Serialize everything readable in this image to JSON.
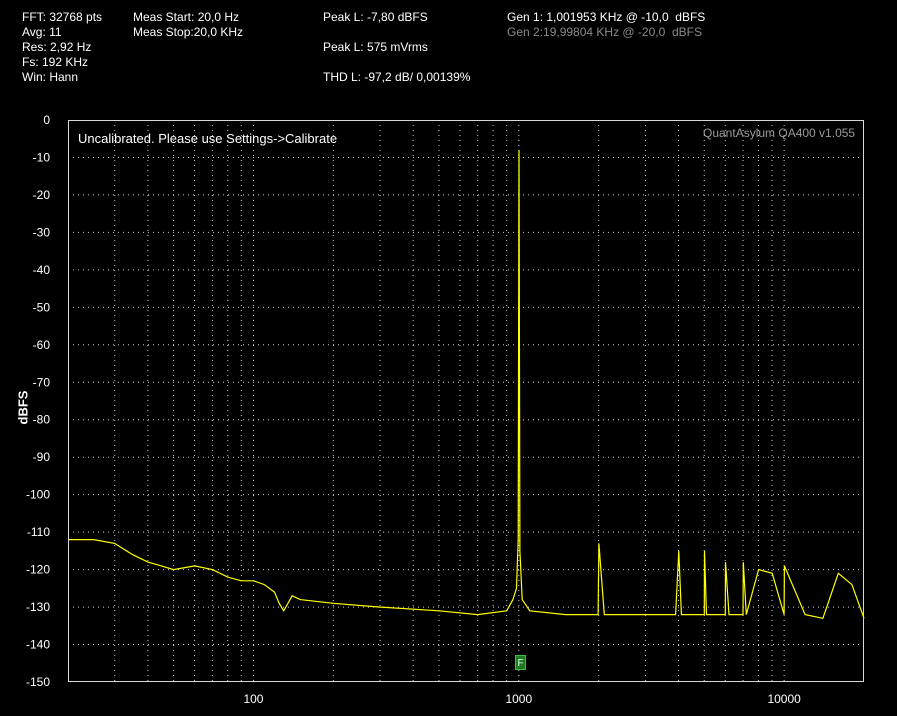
{
  "header": {
    "fft": "FFT: 32768 pts",
    "avg": "Avg: 11",
    "res": "Res: 2,92 Hz",
    "fs": "Fs: 192 KHz",
    "win": "Win: Hann",
    "meas_start": "Meas Start: 20,0 Hz",
    "meas_stop": "Meas Stop:20,0 KHz",
    "peak_dbfs": "Peak L: -7,80 dBFS",
    "peak_mvrms": "Peak L: 575 mVrms",
    "thd": "THD L: -97,2 dB/ 0,00139%",
    "gen1": "Gen 1: 1,001953 KHz @ -10,0  dBFS",
    "gen2": "Gen 2:19,99804 KHz @ -20,0  dBFS"
  },
  "plot": {
    "note": "Uncalibrated. Please use Settings->Calibrate",
    "brand": "QuantAsylum QA400 v1.055",
    "marker_label": "F"
  },
  "colors": {
    "trace": "#ffff00",
    "grid": "#d0d0d0",
    "marker": "#1f7a1f"
  },
  "chart_data": {
    "type": "line",
    "title": "",
    "xlabel": "",
    "ylabel": "dBFS",
    "xscale": "log",
    "xlim": [
      20,
      20000
    ],
    "ylim": [
      -150,
      0
    ],
    "x_ticks": [
      100,
      1000,
      10000
    ],
    "y_ticks": [
      0,
      -10,
      -20,
      -30,
      -40,
      -50,
      -60,
      -70,
      -80,
      -90,
      -100,
      -110,
      -120,
      -130,
      -140,
      -150
    ],
    "grid": true,
    "series": [
      {
        "x": [
          20,
          25,
          30,
          35,
          40,
          45,
          50,
          60,
          70,
          80,
          90,
          100,
          110,
          120,
          125,
          130,
          140,
          150,
          200,
          300,
          500,
          700,
          900,
          950,
          980,
          995,
          1002,
          1010,
          1030,
          1100,
          1500,
          1990,
          2004,
          2100,
          3000,
          3900,
          4008,
          4100,
          5000,
          5010,
          5100,
          6000,
          6012,
          6200,
          7000,
          7014,
          7200,
          8016,
          9018,
          10000,
          10020,
          12000,
          14000,
          16000,
          18000,
          20000
        ],
        "y": [
          -112,
          -112,
          -113,
          -116,
          -118,
          -119,
          -120,
          -119,
          -120,
          -122,
          -123,
          -123,
          -124,
          -126,
          -129,
          -131,
          -127,
          -128,
          -129,
          -130,
          -131,
          -132,
          -131,
          -128,
          -125,
          -112,
          -8,
          -115,
          -128,
          -131,
          -132,
          -132,
          -113,
          -132,
          -132,
          -132,
          -115,
          -132,
          -132,
          -115,
          -132,
          -132,
          -118,
          -132,
          -132,
          -118,
          -132,
          -120,
          -121,
          -132,
          -119,
          -132,
          -133,
          -121,
          -124,
          -133
        ]
      }
    ],
    "annotations": [
      "F"
    ]
  }
}
